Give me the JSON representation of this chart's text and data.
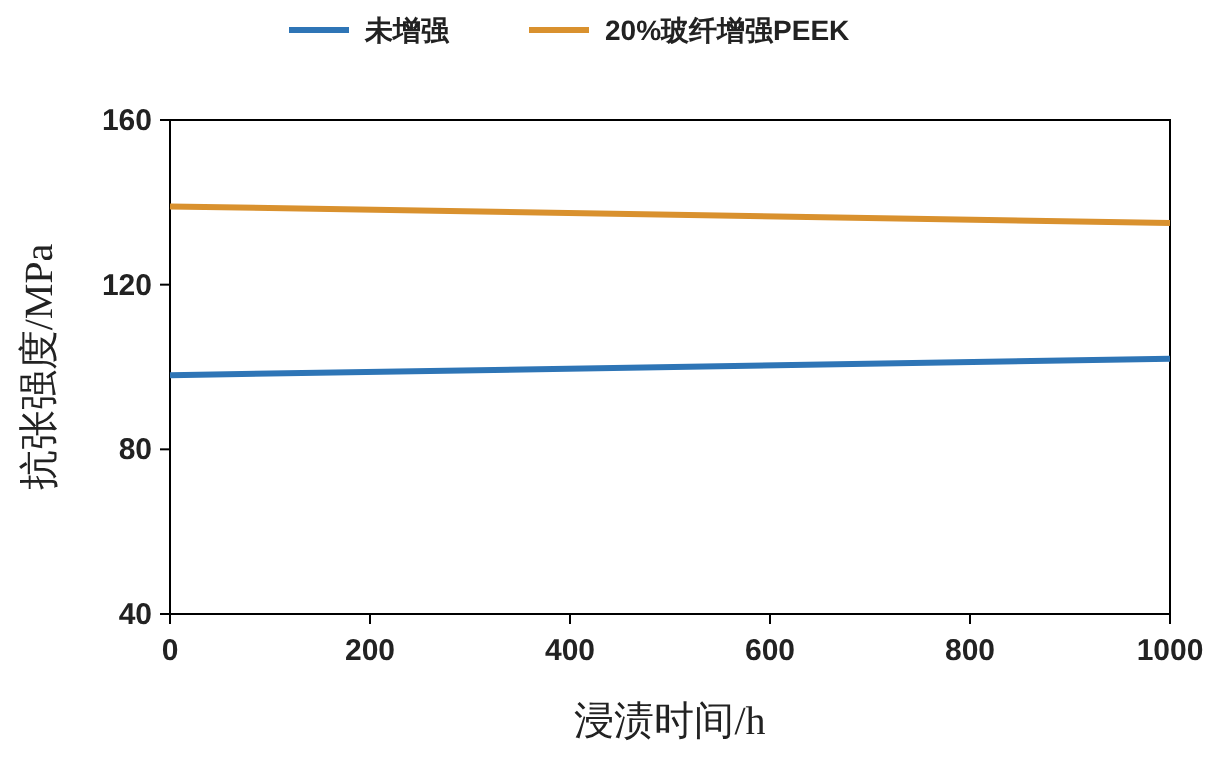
{
  "chart_data": {
    "type": "line",
    "xlabel": "浸渍时间/h",
    "ylabel": "抗张强度/MPa",
    "x": [
      0,
      1000
    ],
    "series": [
      {
        "name": "未增强",
        "color": "#2e75b6",
        "values": [
          98,
          102
        ]
      },
      {
        "name": "20%玻纤增强PEEK",
        "color": "#d9912e",
        "values": [
          139,
          135
        ]
      }
    ],
    "xlim": [
      0,
      1000
    ],
    "xticks": [
      0,
      200,
      400,
      600,
      800,
      1000
    ],
    "ylim": [
      40,
      160
    ],
    "yticks": [
      40,
      80,
      120,
      160
    ],
    "grid": false,
    "legend": "top",
    "marker": "none",
    "line_style": "solid"
  }
}
